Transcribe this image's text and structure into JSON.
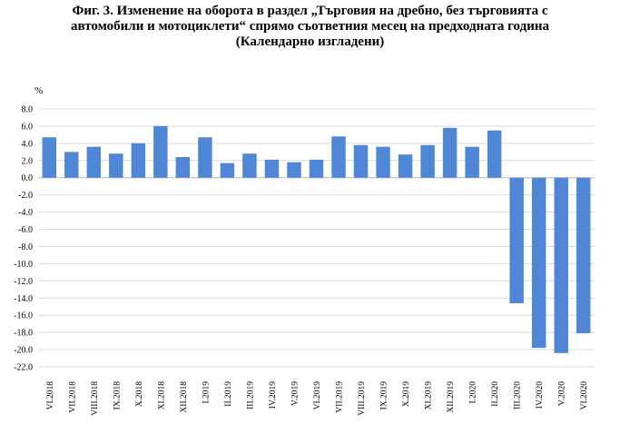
{
  "chart_data": {
    "type": "bar",
    "title_lines": [
      "Фиг. 3. Изменение на оборота в раздел „Търговия на дребно, без търговията с",
      "автомобили и мотоциклети“ спрямо съответния месец на предходната година",
      "(Календарно изгладени)"
    ],
    "ylabel": "%",
    "xlabel": "",
    "ylim": [
      -22.0,
      8.0
    ],
    "ytick_step": 2.0,
    "grid": true,
    "legend": "none",
    "bar_color": "#4f86d6",
    "categories": [
      "VI.2018",
      "VII.2018",
      "VIII.2018",
      "IX.2018",
      "X.2018",
      "XI.2018",
      "XII.2018",
      "I.2019",
      "II.2019",
      "III.2019",
      "IV.2019",
      "V.2019",
      "VI.2019",
      "VII.2019",
      "VIII.2019",
      "IX.2019",
      "X.2019",
      "XI.2019",
      "XII.2019",
      "I.2020",
      "II.2020",
      "III.2020",
      "IV.2020",
      "V.2020",
      "VI.2020"
    ],
    "values": [
      4.7,
      3.0,
      3.6,
      2.8,
      4.0,
      6.0,
      2.4,
      4.7,
      1.7,
      2.8,
      2.1,
      1.8,
      2.1,
      4.8,
      3.8,
      3.6,
      2.7,
      3.8,
      5.8,
      3.6,
      5.5,
      -14.6,
      -19.8,
      -20.4,
      -18.1
    ]
  }
}
